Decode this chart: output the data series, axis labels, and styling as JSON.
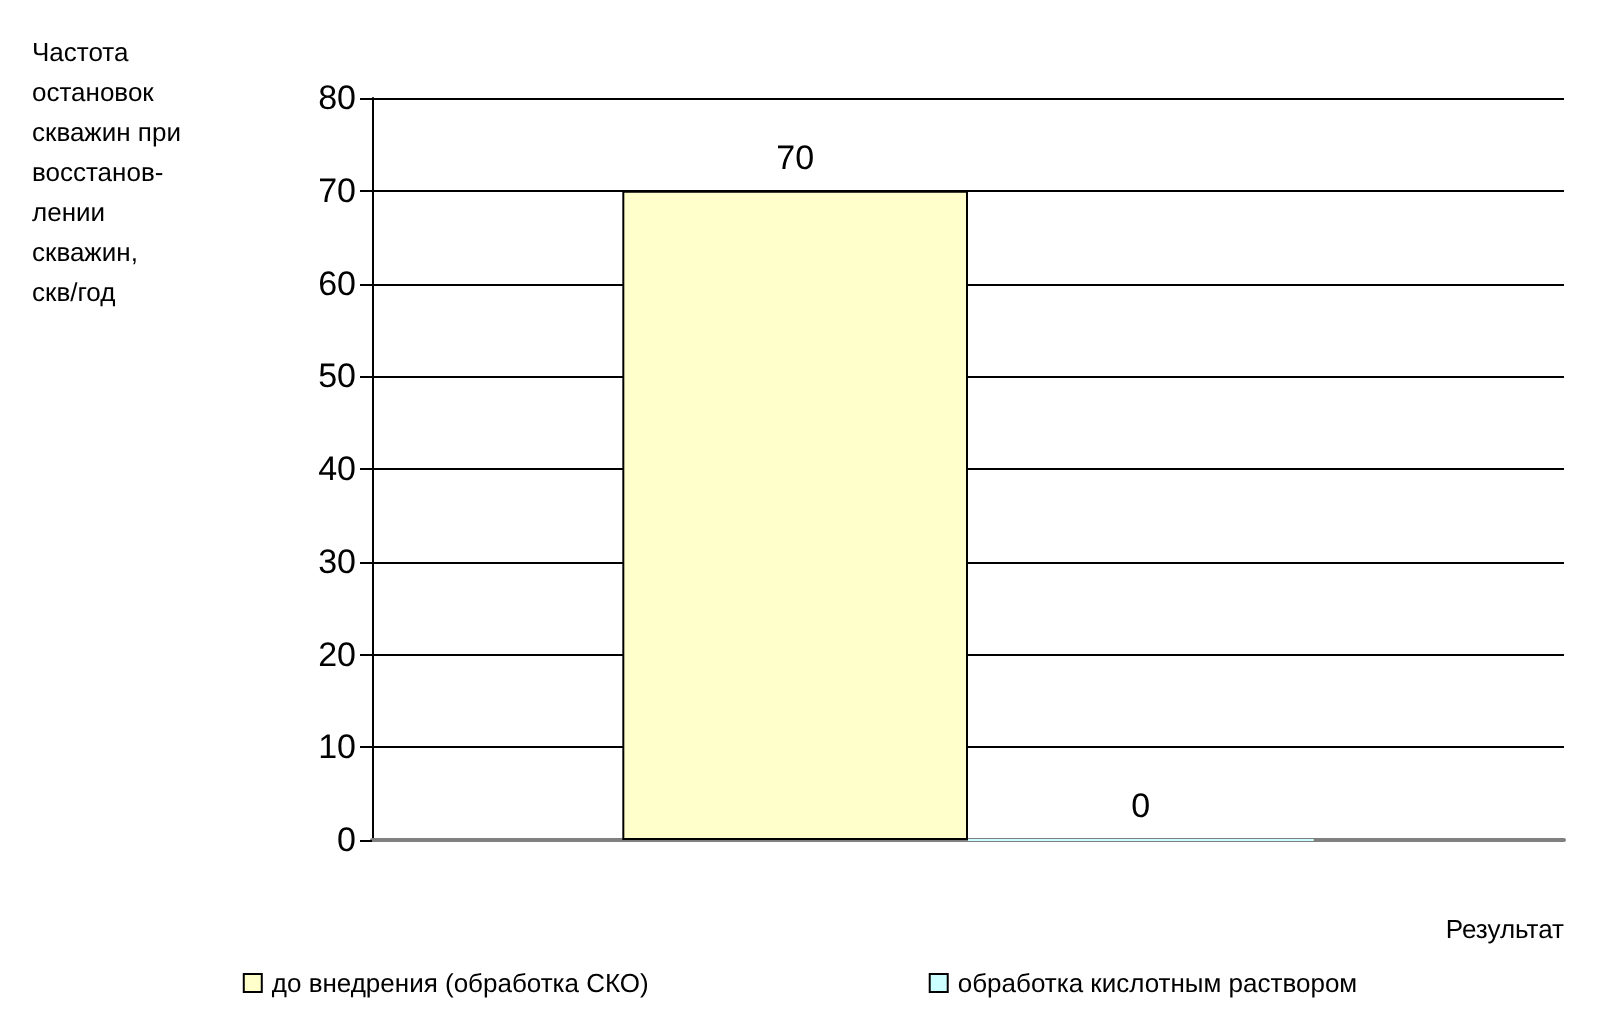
{
  "chart_data": {
    "type": "bar",
    "annotations": [
      "Частота\nостановок\nскважин при\nвосстанов-\nлении\nскважин,\nскв/год"
    ],
    "xlabel": "Результат",
    "categories": [
      null
    ],
    "series": [
      {
        "name": "до внедрения (обработка СКО)",
        "color": "#ffffcc",
        "values": [
          70
        ]
      },
      {
        "name": "обработка кислотным раствором",
        "color": "#ccffff",
        "values": [
          0
        ]
      }
    ],
    "ylim": [
      0,
      80
    ],
    "yticks": [
      0,
      10,
      20,
      30,
      40,
      50,
      60,
      70,
      80
    ],
    "grid": "y",
    "legend": "bottom",
    "data_labels": true
  }
}
